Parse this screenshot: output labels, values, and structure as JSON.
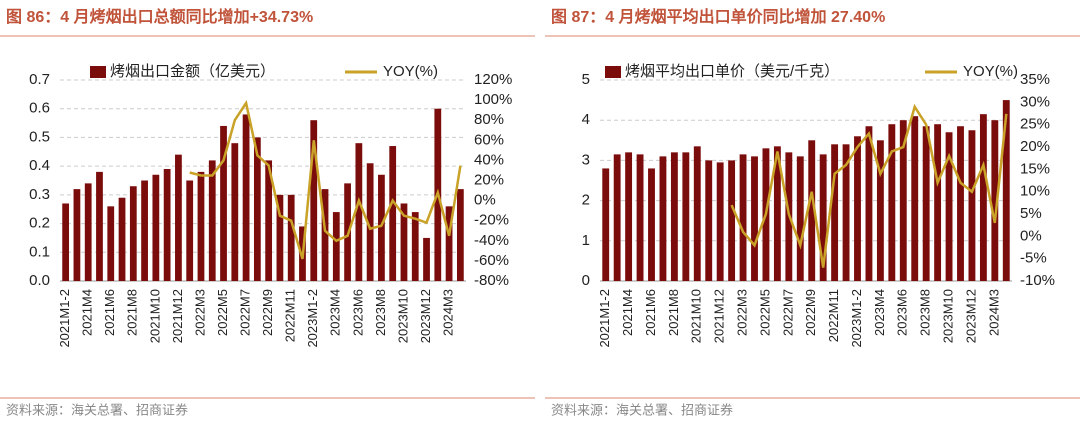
{
  "chart_data": [
    {
      "type": "bar",
      "title": "图 86：4 月烤烟出口总额同比增加+34.73%",
      "source": "资料来源：海关总署、招商证券",
      "categories": [
        "2021M1-2",
        null,
        "2021M4",
        null,
        "2021M6",
        null,
        "2021M8",
        null,
        "2021M10",
        null,
        "2021M12",
        null,
        "2022M3",
        null,
        "2022M5",
        null,
        "2022M7",
        null,
        "2022M9",
        null,
        "2022M11",
        null,
        "2023M1-2",
        null,
        "2023M4",
        null,
        "2023M6",
        null,
        "2023M8",
        null,
        "2023M10",
        null,
        "2023M12",
        null,
        "2024M3",
        null
      ],
      "series": [
        {
          "name": "烤烟出口金额（亿美元）",
          "type": "bar",
          "color": "#7b0c0c",
          "values": [
            0.27,
            0.32,
            0.34,
            0.38,
            0.26,
            0.29,
            0.33,
            0.35,
            0.37,
            0.39,
            0.44,
            0.35,
            0.38,
            0.42,
            0.54,
            0.48,
            0.58,
            0.5,
            0.42,
            0.3,
            0.3,
            0.19,
            0.56,
            0.32,
            0.24,
            0.34,
            0.48,
            0.41,
            0.37,
            0.47,
            0.27,
            0.24,
            0.15,
            0.6,
            0.26,
            0.32
          ]
        },
        {
          "name": "YOY(%)",
          "type": "line",
          "axis": "y2",
          "color": "#c9a227",
          "values": [
            null,
            null,
            null,
            null,
            null,
            null,
            null,
            null,
            null,
            null,
            null,
            28,
            25,
            25,
            40,
            80,
            97,
            45,
            35,
            -15,
            -20,
            -58,
            60,
            -30,
            -40,
            -35,
            0,
            -28,
            -25,
            0,
            -15,
            -18,
            -22,
            8,
            -35,
            34.73
          ]
        }
      ],
      "ylim": [
        0,
        0.7
      ],
      "yticks": [
        {
          "value": 0,
          "label": "0.0"
        },
        0.1,
        0.2,
        0.3,
        0.4,
        0.5,
        0.6,
        0.7
      ],
      "y2lim": [
        -80,
        120
      ],
      "y2ticks": [
        {
          "value": -80,
          "label": "-80%"
        },
        {
          "value": -60,
          "label": "-60%"
        },
        {
          "value": -40,
          "label": "-40%"
        },
        {
          "value": -20,
          "label": "-20%"
        },
        {
          "value": 0,
          "label": "0%"
        },
        {
          "value": 20,
          "label": "20%"
        },
        {
          "value": 40,
          "label": "40%"
        },
        {
          "value": 60,
          "label": "60%"
        },
        {
          "value": 80,
          "label": "80%"
        },
        {
          "value": 100,
          "label": "100%"
        },
        {
          "value": 120,
          "label": "120%"
        }
      ],
      "grid": true
    },
    {
      "type": "bar",
      "title": "图 87：4 月烤烟平均出口单价同比增加 27.40%",
      "source": "资料来源：海关总署、招商证券",
      "categories": [
        "2021M1-2",
        null,
        "2021M4",
        null,
        "2021M6",
        null,
        "2021M8",
        null,
        "2021M10",
        null,
        "2021M12",
        null,
        "2022M3",
        null,
        "2022M5",
        null,
        "2022M7",
        null,
        "2022M9",
        null,
        "2022M11",
        null,
        "2023M1-2",
        null,
        "2023M4",
        null,
        "2023M6",
        null,
        "2023M8",
        null,
        "2023M10",
        null,
        "2023M12",
        null,
        "2024M3",
        null
      ],
      "series": [
        {
          "name": "烤烟平均出口单价（美元/千克）",
          "type": "bar",
          "color": "#7b0c0c",
          "values": [
            2.8,
            3.15,
            3.2,
            3.15,
            2.8,
            3.1,
            3.2,
            3.2,
            3.35,
            3.0,
            2.95,
            3.0,
            3.15,
            3.1,
            3.3,
            3.35,
            3.2,
            3.1,
            3.5,
            3.15,
            3.4,
            3.4,
            3.6,
            3.85,
            3.5,
            3.9,
            4.0,
            4.1,
            3.85,
            3.9,
            3.7,
            3.85,
            3.75,
            4.15,
            4.0,
            4.5
          ]
        },
        {
          "name": "YOY(%)",
          "type": "line",
          "axis": "y2",
          "color": "#c9a227",
          "values": [
            null,
            null,
            null,
            null,
            null,
            null,
            null,
            null,
            null,
            null,
            null,
            7,
            1,
            -2,
            5,
            19,
            5,
            -2,
            10,
            -7,
            14,
            16,
            20,
            23,
            14,
            19,
            20,
            29,
            25,
            12,
            18,
            12,
            10,
            16,
            3,
            27.4
          ]
        }
      ],
      "ylim": [
        0,
        5
      ],
      "yticks": [
        0,
        1,
        2,
        3,
        4,
        5
      ],
      "y2lim": [
        -10,
        35
      ],
      "y2ticks": [
        {
          "value": -10,
          "label": "-10%"
        },
        {
          "value": -5,
          "label": "-5%"
        },
        {
          "value": 0,
          "label": "0%"
        },
        {
          "value": 5,
          "label": "5%"
        },
        {
          "value": 10,
          "label": "10%"
        },
        {
          "value": 15,
          "label": "15%"
        },
        {
          "value": 20,
          "label": "20%"
        },
        {
          "value": 25,
          "label": "25%"
        },
        {
          "value": 30,
          "label": "30%"
        },
        {
          "value": 35,
          "label": "35%"
        }
      ],
      "grid": true
    }
  ]
}
